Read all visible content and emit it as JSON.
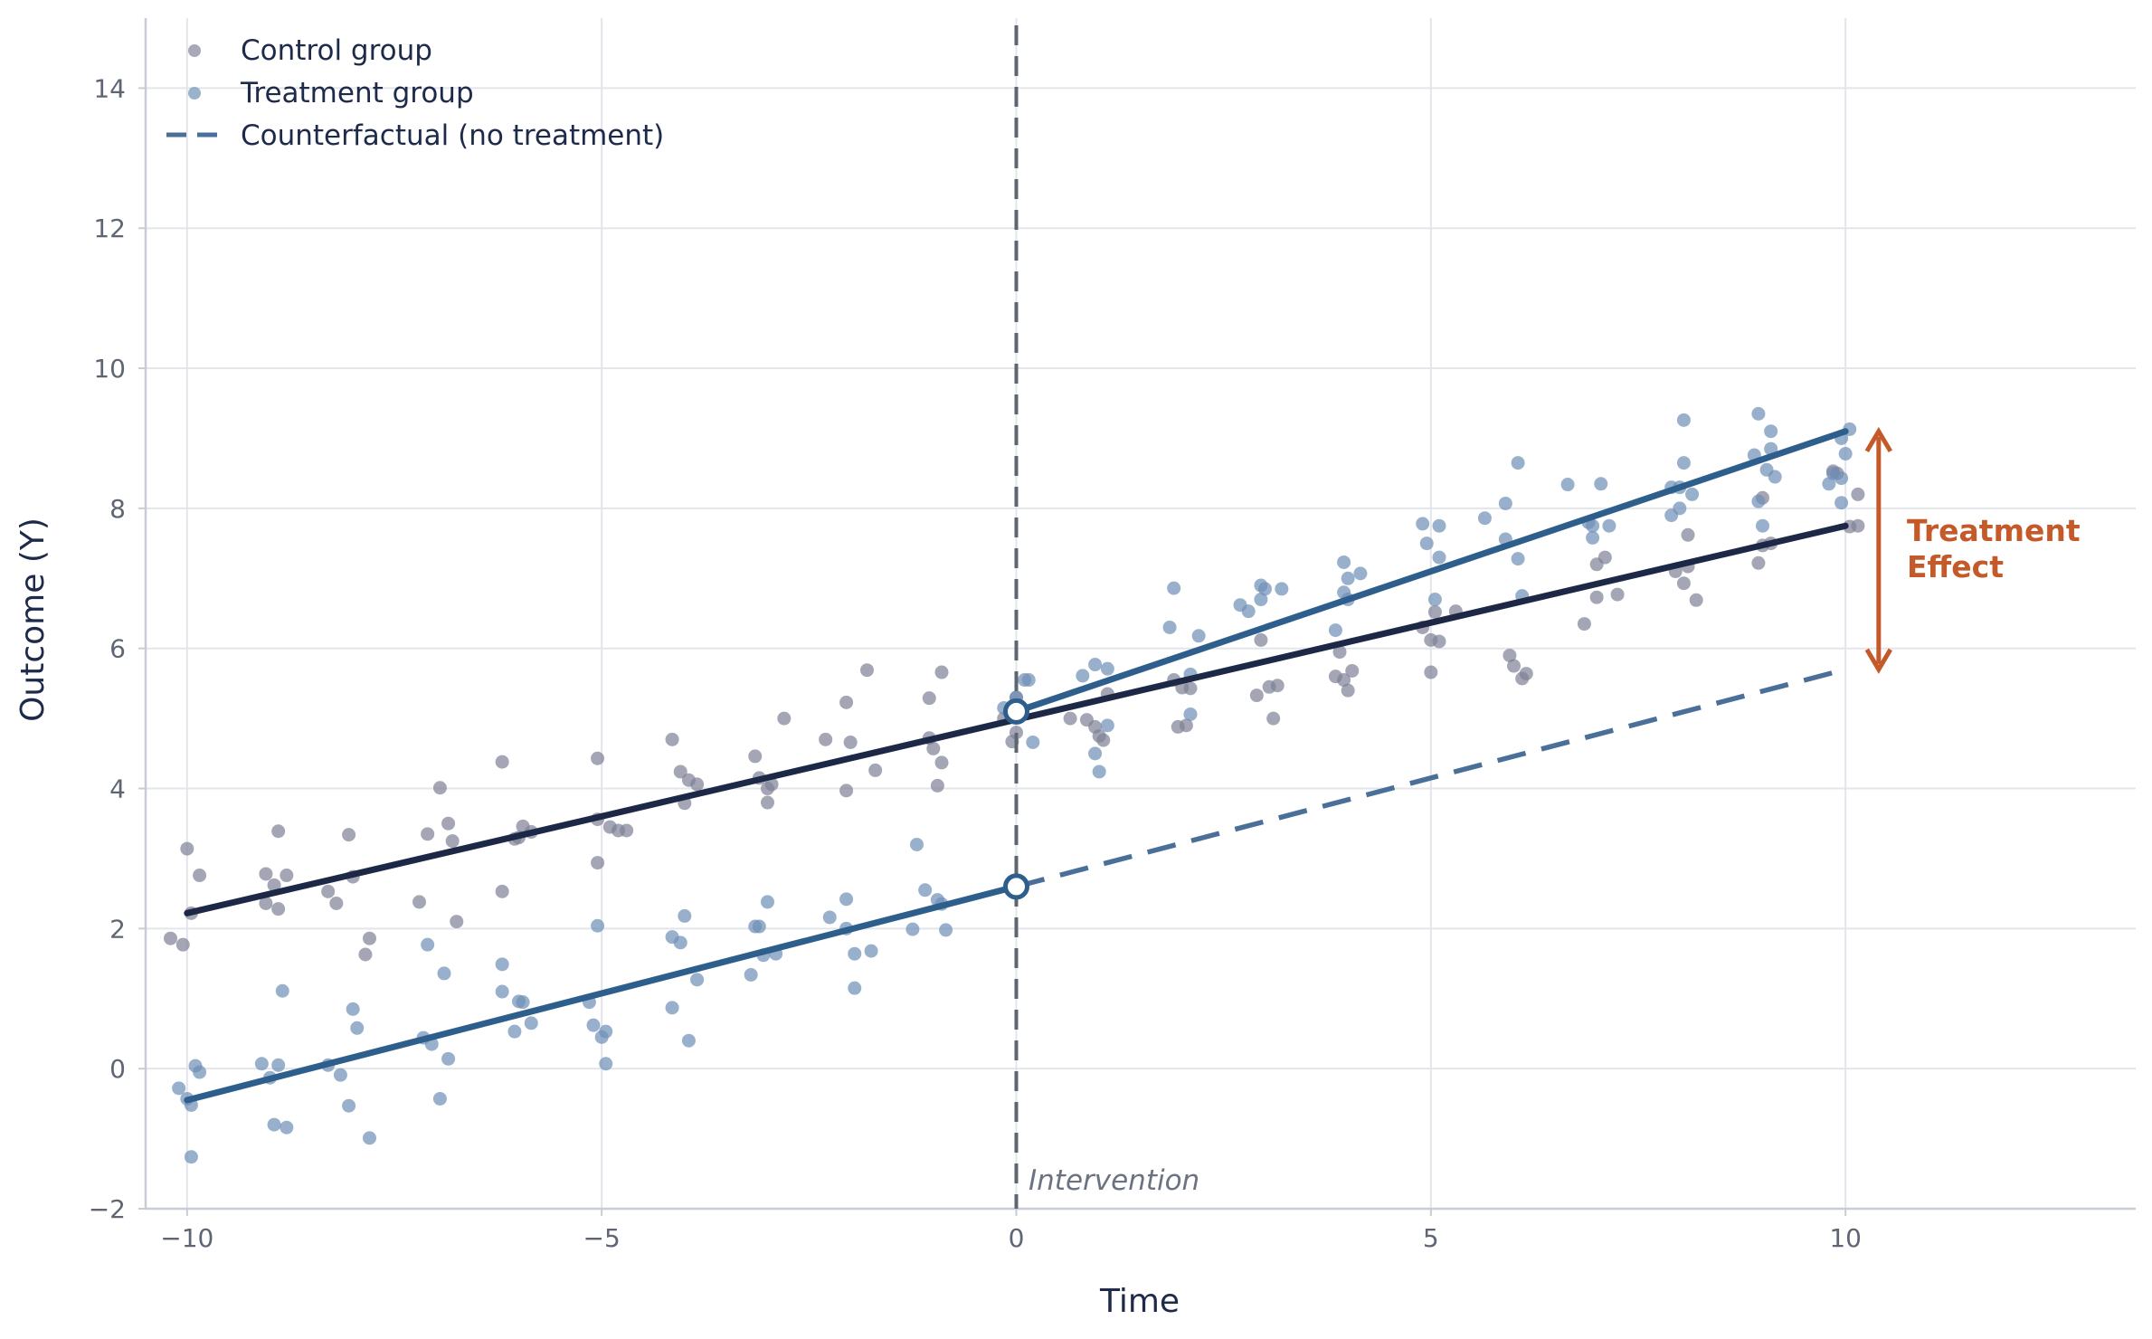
{
  "chart_data": {
    "type": "scatter",
    "xlabel": "Time",
    "ylabel": "Outcome (Y)",
    "xlim": [
      -10.5,
      13.5
    ],
    "ylim": [
      -2,
      15
    ],
    "xticks": [
      -10,
      -5,
      0,
      5,
      10
    ],
    "xtick_labels": [
      "−10",
      "−5",
      "0",
      "5",
      "10"
    ],
    "yticks": [
      -2,
      0,
      2,
      4,
      6,
      8,
      10,
      12,
      14
    ],
    "ytick_labels": [
      "−2",
      "0",
      "2",
      "4",
      "6",
      "8",
      "10",
      "12",
      "14"
    ],
    "grid": true,
    "legend_position": "top-left",
    "legend": [
      {
        "label": "Control group",
        "marker": "dot",
        "color": "#8a8ca0"
      },
      {
        "label": "Treatment group",
        "marker": "dot",
        "color": "#7a98bb"
      },
      {
        "label": "Counterfactual (no treatment)",
        "marker": "dashed-line",
        "color": "#4a6f98"
      }
    ],
    "colors": {
      "control_points": "#7d8096",
      "treatment_points": "#6d8fb6",
      "control_line": "#1d2847",
      "treatment_line": "#2e5f8c",
      "counterfactual_line": "#4a6f98",
      "intervention_line": "#5e6672",
      "annotation": "#c45a2a"
    },
    "series": [
      {
        "name": "Control group",
        "points": [
          [
            -10.2,
            1.86
          ],
          [
            -10.05,
            1.77
          ],
          [
            -10.0,
            3.14
          ],
          [
            -9.95,
            2.22
          ],
          [
            -9.85,
            2.76
          ],
          [
            -9.05,
            2.78
          ],
          [
            -9.05,
            2.36
          ],
          [
            -8.95,
            2.62
          ],
          [
            -8.9,
            3.39
          ],
          [
            -8.9,
            2.28
          ],
          [
            -8.8,
            2.76
          ],
          [
            -8.3,
            2.53
          ],
          [
            -8.2,
            2.36
          ],
          [
            -8.05,
            3.34
          ],
          [
            -8.0,
            2.74
          ],
          [
            -7.85,
            1.63
          ],
          [
            -7.8,
            1.86
          ],
          [
            -7.2,
            2.38
          ],
          [
            -7.1,
            3.35
          ],
          [
            -6.95,
            4.01
          ],
          [
            -6.85,
            3.5
          ],
          [
            -6.8,
            3.25
          ],
          [
            -6.75,
            2.1
          ],
          [
            -6.2,
            4.38
          ],
          [
            -6.2,
            2.53
          ],
          [
            -6.05,
            3.28
          ],
          [
            -6.0,
            3.3
          ],
          [
            -5.95,
            3.46
          ],
          [
            -5.85,
            3.38
          ],
          [
            -5.05,
            4.43
          ],
          [
            -5.05,
            3.56
          ],
          [
            -5.05,
            2.94
          ],
          [
            -4.9,
            3.45
          ],
          [
            -4.8,
            3.4
          ],
          [
            -4.7,
            3.4
          ],
          [
            -4.15,
            4.7
          ],
          [
            -4.05,
            4.24
          ],
          [
            -4.0,
            3.79
          ],
          [
            -3.95,
            4.12
          ],
          [
            -3.85,
            4.06
          ],
          [
            -3.15,
            4.46
          ],
          [
            -3.1,
            4.15
          ],
          [
            -3.0,
            4.0
          ],
          [
            -3.0,
            3.8
          ],
          [
            -2.95,
            4.06
          ],
          [
            -2.8,
            5.0
          ],
          [
            -2.3,
            4.7
          ],
          [
            -2.05,
            5.23
          ],
          [
            -2.05,
            3.97
          ],
          [
            -2.0,
            4.66
          ],
          [
            -1.8,
            5.69
          ],
          [
            -1.7,
            4.26
          ],
          [
            -1.05,
            5.29
          ],
          [
            -1.05,
            4.72
          ],
          [
            -1.0,
            4.57
          ],
          [
            -0.95,
            4.04
          ],
          [
            -0.9,
            5.66
          ],
          [
            -0.9,
            4.37
          ],
          [
            -0.15,
            5.0
          ],
          [
            -0.05,
            4.67
          ],
          [
            0.0,
            4.8
          ],
          [
            0.0,
            5.3
          ],
          [
            0.65,
            5.0
          ],
          [
            0.85,
            4.98
          ],
          [
            0.95,
            4.88
          ],
          [
            1.0,
            4.75
          ],
          [
            1.05,
            4.69
          ],
          [
            1.1,
            5.35
          ],
          [
            1.9,
            5.55
          ],
          [
            1.95,
            4.88
          ],
          [
            2.0,
            5.44
          ],
          [
            2.05,
            4.9
          ],
          [
            2.1,
            5.43
          ],
          [
            2.9,
            5.33
          ],
          [
            2.95,
            6.12
          ],
          [
            3.05,
            5.45
          ],
          [
            3.1,
            5.0
          ],
          [
            3.15,
            5.47
          ],
          [
            3.85,
            5.6
          ],
          [
            3.9,
            5.95
          ],
          [
            3.95,
            5.55
          ],
          [
            4.0,
            5.4
          ],
          [
            4.05,
            5.68
          ],
          [
            4.9,
            6.3
          ],
          [
            5.0,
            6.12
          ],
          [
            5.0,
            5.66
          ],
          [
            5.05,
            6.52
          ],
          [
            5.1,
            6.1
          ],
          [
            5.3,
            6.53
          ],
          [
            5.95,
            5.9
          ],
          [
            6.0,
            5.75
          ],
          [
            6.1,
            5.57
          ],
          [
            6.15,
            5.64
          ],
          [
            6.85,
            6.35
          ],
          [
            7.0,
            6.73
          ],
          [
            7.0,
            7.2
          ],
          [
            7.1,
            7.3
          ],
          [
            7.25,
            6.77
          ],
          [
            7.95,
            7.1
          ],
          [
            8.05,
            6.93
          ],
          [
            8.1,
            7.62
          ],
          [
            8.1,
            7.17
          ],
          [
            8.2,
            6.69
          ],
          [
            8.95,
            7.22
          ],
          [
            9.0,
            7.47
          ],
          [
            9.0,
            8.15
          ],
          [
            9.1,
            7.5
          ],
          [
            9.85,
            8.53
          ],
          [
            9.9,
            8.5
          ],
          [
            10.05,
            7.74
          ],
          [
            10.15,
            7.75
          ],
          [
            10.15,
            8.2
          ]
        ]
      },
      {
        "name": "Treatment group",
        "points": [
          [
            -10.1,
            -0.28
          ],
          [
            -10.0,
            -0.43
          ],
          [
            -9.95,
            -1.26
          ],
          [
            -9.95,
            -0.52
          ],
          [
            -9.9,
            0.04
          ],
          [
            -9.85,
            -0.05
          ],
          [
            -9.1,
            0.07
          ],
          [
            -9.0,
            -0.13
          ],
          [
            -8.95,
            -0.8
          ],
          [
            -8.9,
            0.05
          ],
          [
            -8.85,
            1.11
          ],
          [
            -8.8,
            -0.84
          ],
          [
            -8.3,
            0.05
          ],
          [
            -8.15,
            -0.09
          ],
          [
            -8.05,
            -0.53
          ],
          [
            -8.0,
            0.85
          ],
          [
            -7.95,
            0.58
          ],
          [
            -7.8,
            -0.99
          ],
          [
            -7.15,
            0.44
          ],
          [
            -7.05,
            0.35
          ],
          [
            -7.1,
            1.77
          ],
          [
            -6.95,
            -0.43
          ],
          [
            -6.9,
            1.36
          ],
          [
            -6.85,
            0.14
          ],
          [
            -6.2,
            1.1
          ],
          [
            -6.2,
            1.49
          ],
          [
            -6.05,
            0.53
          ],
          [
            -6.0,
            0.96
          ],
          [
            -5.95,
            0.95
          ],
          [
            -5.85,
            0.65
          ],
          [
            -5.15,
            0.95
          ],
          [
            -5.1,
            0.62
          ],
          [
            -5.05,
            2.04
          ],
          [
            -5.0,
            0.45
          ],
          [
            -4.95,
            0.53
          ],
          [
            -4.95,
            0.07
          ],
          [
            -4.15,
            0.87
          ],
          [
            -4.15,
            1.88
          ],
          [
            -4.05,
            1.8
          ],
          [
            -4.0,
            2.18
          ],
          [
            -3.95,
            0.4
          ],
          [
            -3.85,
            1.27
          ],
          [
            -3.2,
            1.34
          ],
          [
            -3.15,
            2.03
          ],
          [
            -3.1,
            2.03
          ],
          [
            -3.05,
            1.62
          ],
          [
            -3.0,
            2.38
          ],
          [
            -2.9,
            1.64
          ],
          [
            -2.25,
            2.16
          ],
          [
            -2.05,
            2.42
          ],
          [
            -2.05,
            2.0
          ],
          [
            -1.95,
            1.64
          ],
          [
            -1.95,
            1.15
          ],
          [
            -1.75,
            1.68
          ],
          [
            -1.25,
            1.99
          ],
          [
            -1.2,
            3.2
          ],
          [
            -1.1,
            2.55
          ],
          [
            -0.95,
            2.41
          ],
          [
            -0.9,
            2.35
          ],
          [
            -0.85,
            1.98
          ],
          [
            -0.15,
            5.15
          ],
          [
            0.0,
            5.3
          ],
          [
            0.1,
            5.55
          ],
          [
            0.15,
            5.55
          ],
          [
            0.2,
            4.66
          ],
          [
            0.8,
            5.61
          ],
          [
            0.95,
            5.77
          ],
          [
            0.95,
            4.5
          ],
          [
            1.0,
            4.24
          ],
          [
            1.1,
            5.71
          ],
          [
            1.1,
            4.9
          ],
          [
            1.85,
            6.3
          ],
          [
            1.9,
            6.86
          ],
          [
            2.1,
            5.63
          ],
          [
            2.1,
            5.06
          ],
          [
            2.2,
            6.18
          ],
          [
            2.7,
            6.62
          ],
          [
            2.8,
            6.53
          ],
          [
            2.95,
            6.9
          ],
          [
            3.0,
            6.85
          ],
          [
            2.95,
            6.7
          ],
          [
            3.2,
            6.85
          ],
          [
            3.85,
            6.26
          ],
          [
            3.95,
            6.8
          ],
          [
            3.95,
            7.23
          ],
          [
            4.0,
            6.7
          ],
          [
            4.0,
            7.0
          ],
          [
            4.15,
            7.07
          ],
          [
            4.9,
            7.78
          ],
          [
            4.95,
            7.5
          ],
          [
            5.05,
            6.7
          ],
          [
            5.1,
            7.3
          ],
          [
            5.1,
            7.75
          ],
          [
            5.65,
            7.86
          ],
          [
            5.9,
            7.56
          ],
          [
            5.9,
            8.07
          ],
          [
            6.05,
            8.65
          ],
          [
            6.05,
            7.28
          ],
          [
            6.1,
            6.75
          ],
          [
            6.65,
            8.34
          ],
          [
            6.9,
            7.8
          ],
          [
            6.95,
            7.58
          ],
          [
            6.95,
            7.75
          ],
          [
            7.05,
            8.35
          ],
          [
            7.15,
            7.75
          ],
          [
            7.9,
            8.3
          ],
          [
            7.9,
            7.9
          ],
          [
            8.0,
            8.0
          ],
          [
            8.0,
            8.3
          ],
          [
            8.05,
            8.65
          ],
          [
            8.05,
            9.26
          ],
          [
            8.15,
            8.2
          ],
          [
            8.9,
            8.76
          ],
          [
            8.95,
            9.35
          ],
          [
            8.95,
            8.1
          ],
          [
            9.0,
            7.75
          ],
          [
            9.05,
            8.55
          ],
          [
            9.1,
            8.85
          ],
          [
            9.1,
            9.1
          ],
          [
            9.15,
            8.45
          ],
          [
            9.8,
            8.35
          ],
          [
            9.85,
            8.5
          ],
          [
            9.95,
            8.08
          ],
          [
            9.95,
            8.43
          ],
          [
            9.95,
            9.0
          ],
          [
            10.0,
            8.78
          ],
          [
            10.05,
            9.13
          ]
        ]
      }
    ],
    "lines": [
      {
        "name": "Control trend",
        "x": [
          -10,
          10
        ],
        "y": [
          2.22,
          7.75
        ]
      },
      {
        "name": "Treatment trend pre",
        "x": [
          -10,
          0
        ],
        "y": [
          -0.45,
          2.6
        ]
      },
      {
        "name": "Treatment trend post",
        "x": [
          0,
          10
        ],
        "y": [
          5.1,
          9.1
        ]
      },
      {
        "name": "Counterfactual (no treatment)",
        "x": [
          0,
          10
        ],
        "y": [
          2.6,
          5.7
        ],
        "style": "dashed"
      }
    ],
    "markers": [
      {
        "x": 0,
        "y": 5.1,
        "style": "open-circle"
      },
      {
        "x": 0,
        "y": 2.6,
        "style": "open-circle"
      }
    ],
    "intervention": {
      "x": 0,
      "label": "Intervention"
    },
    "effect_arrow": {
      "x": 10.4,
      "y_from": 5.7,
      "y_to": 9.1,
      "label_line1": "Treatment",
      "label_line2": "Effect"
    }
  }
}
